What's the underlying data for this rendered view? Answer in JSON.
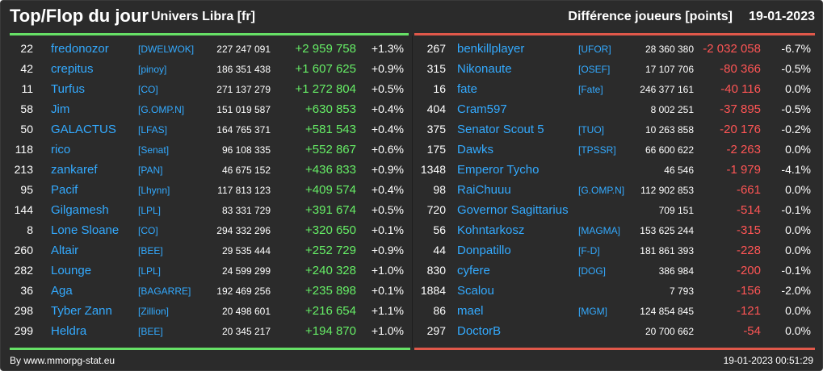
{
  "header": {
    "title": "Top/Flop du jour",
    "subtitle": "Univers Libra [fr]",
    "diff_label": "Différence joueurs [points]",
    "date": "19-01-2023"
  },
  "colors": {
    "background": "#2b2b2b",
    "link": "#33aaff",
    "positive": "#66ee66",
    "negative": "#ff5555",
    "top_bar": "#66e066",
    "flop_bar": "#e0584a"
  },
  "top": [
    {
      "rank": "22",
      "name": "fredonozor",
      "alliance": "[DWELWOK]",
      "points": "227 247 091",
      "diff": "+2 959 758",
      "pct": "+1.3%"
    },
    {
      "rank": "42",
      "name": "crepitus",
      "alliance": "[pinoy]",
      "points": "186 351 438",
      "diff": "+1 607 625",
      "pct": "+0.9%"
    },
    {
      "rank": "11",
      "name": "Turfus",
      "alliance": "[CO]",
      "points": "271 137 279",
      "diff": "+1 272 804",
      "pct": "+0.5%"
    },
    {
      "rank": "58",
      "name": "Jim",
      "alliance": "[G.OMP.N]",
      "points": "151 019 587",
      "diff": "+630 853",
      "pct": "+0.4%"
    },
    {
      "rank": "50",
      "name": "GALACTUS",
      "alliance": "[LFAS]",
      "points": "164 765 371",
      "diff": "+581 543",
      "pct": "+0.4%"
    },
    {
      "rank": "118",
      "name": "rico",
      "alliance": "[Senat]",
      "points": "96 108 335",
      "diff": "+552 867",
      "pct": "+0.6%"
    },
    {
      "rank": "213",
      "name": "zankaref",
      "alliance": "[PAN]",
      "points": "46 675 152",
      "diff": "+436 833",
      "pct": "+0.9%"
    },
    {
      "rank": "95",
      "name": "Pacif",
      "alliance": "[Lhynn]",
      "points": "117 813 123",
      "diff": "+409 574",
      "pct": "+0.4%"
    },
    {
      "rank": "144",
      "name": "Gilgamesh",
      "alliance": "[LPL]",
      "points": "83 331 729",
      "diff": "+391 674",
      "pct": "+0.5%"
    },
    {
      "rank": "8",
      "name": "Lone Sloane",
      "alliance": "[CO]",
      "points": "294 332 296",
      "diff": "+320 650",
      "pct": "+0.1%"
    },
    {
      "rank": "260",
      "name": "Altair",
      "alliance": "[BEE]",
      "points": "29 535 444",
      "diff": "+252 729",
      "pct": "+0.9%"
    },
    {
      "rank": "282",
      "name": "Lounge",
      "alliance": "[LPL]",
      "points": "24 599 299",
      "diff": "+240 328",
      "pct": "+1.0%"
    },
    {
      "rank": "36",
      "name": "Aga",
      "alliance": "[BAGARRE]",
      "points": "192 469 256",
      "diff": "+235 898",
      "pct": "+0.1%"
    },
    {
      "rank": "298",
      "name": "Tyber Zann",
      "alliance": "[Zillion]",
      "points": "20 498 601",
      "diff": "+216 654",
      "pct": "+1.1%"
    },
    {
      "rank": "299",
      "name": "Heldra",
      "alliance": "[BEE]",
      "points": "20 345 217",
      "diff": "+194 870",
      "pct": "+1.0%"
    }
  ],
  "flop": [
    {
      "rank": "267",
      "name": "benkillplayer",
      "alliance": "[UFOR]",
      "points": "28 360 380",
      "diff": "-2 032 058",
      "pct": "-6.7%"
    },
    {
      "rank": "315",
      "name": "Nikonaute",
      "alliance": "[OSEF]",
      "points": "17 107 706",
      "diff": "-80 366",
      "pct": "-0.5%"
    },
    {
      "rank": "16",
      "name": "fate",
      "alliance": "[Fate]",
      "points": "246 377 161",
      "diff": "-40 116",
      "pct": "0.0%"
    },
    {
      "rank": "404",
      "name": "Cram597",
      "alliance": "",
      "points": "8 002 251",
      "diff": "-37 895",
      "pct": "-0.5%"
    },
    {
      "rank": "375",
      "name": "Senator Scout 5",
      "alliance": "[TUO]",
      "points": "10 263 858",
      "diff": "-20 176",
      "pct": "-0.2%"
    },
    {
      "rank": "175",
      "name": "Dawks",
      "alliance": "[TPSSR]",
      "points": "66 600 622",
      "diff": "-2 263",
      "pct": "0.0%"
    },
    {
      "rank": "1348",
      "name": "Emperor Tycho",
      "alliance": "",
      "points": "46 546",
      "diff": "-1 979",
      "pct": "-4.1%"
    },
    {
      "rank": "98",
      "name": "RaiChuuu",
      "alliance": "[G.OMP.N]",
      "points": "112 902 853",
      "diff": "-661",
      "pct": "0.0%"
    },
    {
      "rank": "720",
      "name": "Governor Sagittarius",
      "alliance": "",
      "points": "709 151",
      "diff": "-514",
      "pct": "-0.1%"
    },
    {
      "rank": "56",
      "name": "Kohntarkosz",
      "alliance": "[MAGMA]",
      "points": "153 625 244",
      "diff": "-315",
      "pct": "0.0%"
    },
    {
      "rank": "44",
      "name": "Donpatillo",
      "alliance": "[F-D]",
      "points": "181 861 393",
      "diff": "-228",
      "pct": "0.0%"
    },
    {
      "rank": "830",
      "name": "cyfere",
      "alliance": "[DOG]",
      "points": "386 984",
      "diff": "-200",
      "pct": "-0.1%"
    },
    {
      "rank": "1884",
      "name": "Scalou",
      "alliance": "",
      "points": "7 793",
      "diff": "-156",
      "pct": "-2.0%"
    },
    {
      "rank": "86",
      "name": "mael",
      "alliance": "[MGM]",
      "points": "124 854 845",
      "diff": "-121",
      "pct": "0.0%"
    },
    {
      "rank": "297",
      "name": "DoctorB",
      "alliance": "",
      "points": "20 700 662",
      "diff": "-54",
      "pct": "0.0%"
    }
  ],
  "footer": {
    "credit": "By www.mmorpg-stat.eu",
    "timestamp": "19-01-2023 00:51:29"
  }
}
